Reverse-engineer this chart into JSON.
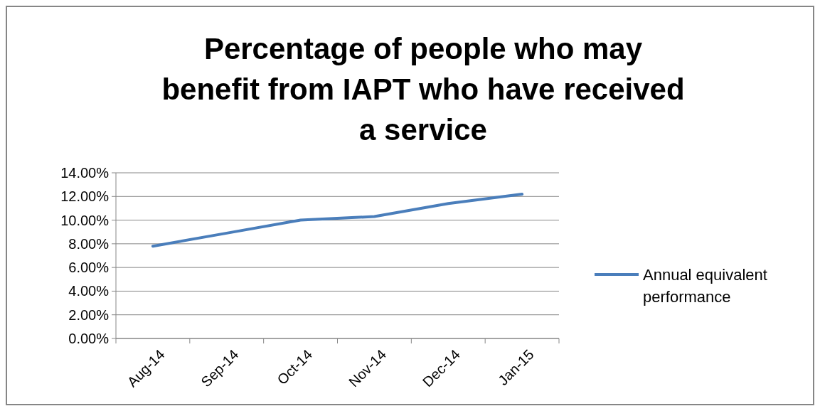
{
  "chart_data": {
    "type": "line",
    "title": "Percentage of people who may benefit from IAPT who have received a service",
    "categories": [
      "Aug-14",
      "Sep-14",
      "Oct-14",
      "Nov-14",
      "Dec-14",
      "Jan-15"
    ],
    "series": [
      {
        "name": "Annual equivalent performance",
        "color": "#4a7ebb",
        "values": [
          7.8,
          8.9,
          10.0,
          10.3,
          11.4,
          12.2
        ]
      }
    ],
    "ylim": [
      0,
      14
    ],
    "yticks": [
      {
        "value": 0,
        "label": "0.00%"
      },
      {
        "value": 2,
        "label": "2.00%"
      },
      {
        "value": 4,
        "label": "4.00%"
      },
      {
        "value": 6,
        "label": "6.00%"
      },
      {
        "value": 8,
        "label": "8.00%"
      },
      {
        "value": 10,
        "label": "10.00%"
      },
      {
        "value": 12,
        "label": "12.00%"
      },
      {
        "value": 14,
        "label": "14.00%"
      }
    ],
    "grid": "y",
    "legend": "right",
    "marker": "none"
  }
}
